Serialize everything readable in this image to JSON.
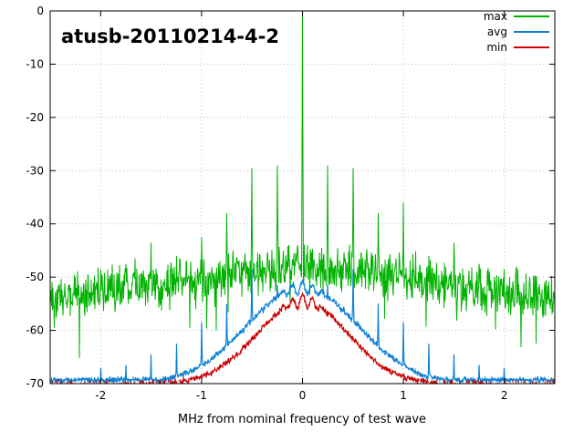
{
  "chart_data": {
    "type": "line",
    "title": "atusb-20110214-4-2",
    "xlabel": "MHz from nominal frequency of test wave",
    "xlim": [
      -2.5,
      2.5
    ],
    "ylim": [
      -70,
      0
    ],
    "xticks": [
      -2,
      -1,
      0,
      1,
      2
    ],
    "yticks": [
      0,
      -10,
      -20,
      -30,
      -40,
      -50,
      -60,
      -70
    ],
    "grid": true,
    "legend_position": "top-right",
    "background": "#ffffff",
    "grid_color": "#bdbdbd",
    "axis_color": "#000000",
    "seed": 1337,
    "series": [
      {
        "name": "max",
        "color": "#00b200",
        "model": "noise",
        "edge_level": -54,
        "center_boost": 6,
        "sigma": 1.1,
        "spread": 4.2,
        "dip_chance": 0.02,
        "width": 1,
        "spikes": [
          [
            -2.25,
            -50
          ],
          [
            -2.0,
            -48.5
          ],
          [
            -1.75,
            -47.5
          ],
          [
            -1.5,
            -43.5
          ],
          [
            -1.25,
            -46
          ],
          [
            -1.0,
            -42.5
          ],
          [
            -0.75,
            -38
          ],
          [
            -0.5,
            -29.5
          ],
          [
            -0.25,
            -29
          ],
          [
            -0.05,
            -44
          ],
          [
            0,
            0
          ],
          [
            0.05,
            -44
          ],
          [
            0.25,
            -29
          ],
          [
            0.5,
            -29.5
          ],
          [
            0.75,
            -38
          ],
          [
            1.0,
            -36
          ],
          [
            1.25,
            -46
          ],
          [
            1.5,
            -43.5
          ],
          [
            1.75,
            -47.5
          ],
          [
            2.0,
            -48.5
          ],
          [
            2.25,
            -50
          ]
        ]
      },
      {
        "name": "avg",
        "color": "#0a7fd6",
        "model": "hump",
        "amp": 18,
        "sigma": 0.55,
        "floor": -69.3,
        "jitter": 0.7,
        "ripple": 1.3,
        "ripple_width": 0.16,
        "ripple_period": 0.1,
        "clip": false,
        "width": 1.2,
        "spikes": [
          [
            -2.0,
            -67
          ],
          [
            -1.75,
            -66.5
          ],
          [
            -1.5,
            -64.5
          ],
          [
            -1.25,
            -62.5
          ],
          [
            -1.0,
            -58.5
          ],
          [
            -0.75,
            -55
          ],
          [
            -0.5,
            -48.5
          ],
          [
            -0.25,
            -51.5
          ],
          [
            0.25,
            -51.5
          ],
          [
            0.5,
            -48.5
          ],
          [
            0.75,
            -55
          ],
          [
            1.0,
            -58.5
          ],
          [
            1.25,
            -62.5
          ],
          [
            1.5,
            -64.5
          ],
          [
            1.75,
            -66.5
          ],
          [
            2.0,
            -67
          ]
        ]
      },
      {
        "name": "min",
        "color": "#cc0000",
        "model": "hump",
        "amp": 15.5,
        "sigma": 0.45,
        "floor": -75,
        "jitter": 0.7,
        "ripple": 1.3,
        "ripple_width": 0.16,
        "ripple_period": 0.1,
        "clip": true,
        "width": 1.2,
        "spikes": []
      }
    ]
  }
}
